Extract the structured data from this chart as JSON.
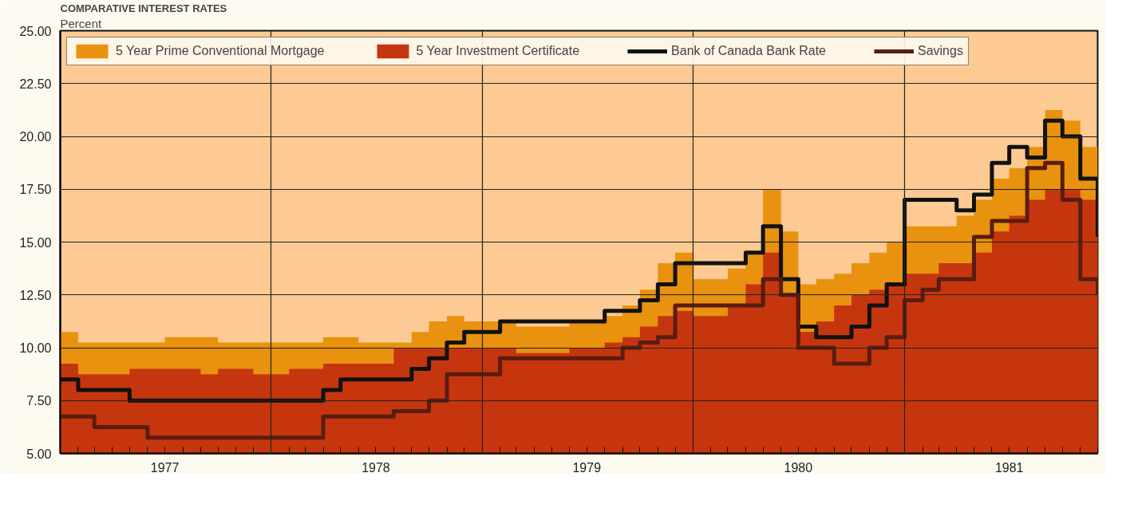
{
  "chart_data": {
    "type": "area",
    "title": "COMPARATIVE INTEREST RATES",
    "ylabel": "Percent",
    "x": [
      "1977-01",
      "1977-02",
      "1977-03",
      "1977-04",
      "1977-05",
      "1977-06",
      "1977-07",
      "1977-08",
      "1977-09",
      "1977-10",
      "1977-11",
      "1977-12",
      "1978-01",
      "1978-02",
      "1978-03",
      "1978-04",
      "1978-05",
      "1978-06",
      "1978-07",
      "1978-08",
      "1978-09",
      "1978-10",
      "1978-11",
      "1978-12",
      "1979-01",
      "1979-02",
      "1979-03",
      "1979-04",
      "1979-05",
      "1979-06",
      "1979-07",
      "1979-08",
      "1979-09",
      "1979-10",
      "1979-11",
      "1979-12",
      "1980-01",
      "1980-02",
      "1980-03",
      "1980-04",
      "1980-05",
      "1980-06",
      "1980-07",
      "1980-08",
      "1980-09",
      "1980-10",
      "1980-11",
      "1980-12",
      "1981-01",
      "1981-02",
      "1981-03",
      "1981-04",
      "1981-05",
      "1981-06",
      "1981-07",
      "1981-08",
      "1981-09",
      "1981-10",
      "1981-11",
      "1981-12"
    ],
    "series": [
      {
        "name": "5 Year Prime Conventional Mortgage",
        "color": "#e8920f",
        "values": [
          10.75,
          10.25,
          10.25,
          10.25,
          10.25,
          10.25,
          10.5,
          10.5,
          10.5,
          10.25,
          10.25,
          10.25,
          10.25,
          10.25,
          10.25,
          10.5,
          10.5,
          10.25,
          10.25,
          10.25,
          10.75,
          11.25,
          11.5,
          11.25,
          11.25,
          11.25,
          11.0,
          11.0,
          11.0,
          11.25,
          11.25,
          11.5,
          12.0,
          12.75,
          14.0,
          14.5,
          13.25,
          13.25,
          13.75,
          14.5,
          17.5,
          15.5,
          13.0,
          13.25,
          13.5,
          14.0,
          14.5,
          15.0,
          15.75,
          15.75,
          15.75,
          16.25,
          17.0,
          18.0,
          18.5,
          19.5,
          21.25,
          20.75,
          19.5,
          18.5
        ]
      },
      {
        "name": "5 Year Investment Certificate",
        "color": "#c5360e",
        "values": [
          9.25,
          8.75,
          8.75,
          8.75,
          9.0,
          9.0,
          9.0,
          9.0,
          8.75,
          9.0,
          9.0,
          8.75,
          8.75,
          9.0,
          9.0,
          9.25,
          9.25,
          9.25,
          9.25,
          10.0,
          10.0,
          10.0,
          10.0,
          10.0,
          10.0,
          10.0,
          9.75,
          9.75,
          9.75,
          10.0,
          10.0,
          10.25,
          10.5,
          11.0,
          11.5,
          11.75,
          11.5,
          11.5,
          12.0,
          13.0,
          14.5,
          12.5,
          10.75,
          11.25,
          12.0,
          12.5,
          12.75,
          13.0,
          13.5,
          13.5,
          14.0,
          14.0,
          14.5,
          15.5,
          16.25,
          17.0,
          17.5,
          17.5,
          17.0,
          16.0
        ]
      },
      {
        "name": "Bank of Canada Bank Rate",
        "type": "step",
        "color": "#111111",
        "values": [
          8.5,
          8.0,
          8.0,
          8.0,
          7.5,
          7.5,
          7.5,
          7.5,
          7.5,
          7.5,
          7.5,
          7.5,
          7.5,
          7.5,
          7.5,
          8.0,
          8.5,
          8.5,
          8.5,
          8.5,
          9.0,
          9.5,
          10.25,
          10.75,
          10.75,
          11.25,
          11.25,
          11.25,
          11.25,
          11.25,
          11.25,
          11.75,
          11.75,
          12.25,
          13.0,
          14.0,
          14.0,
          14.0,
          14.0,
          14.5,
          15.75,
          13.25,
          11.0,
          10.5,
          10.5,
          11.0,
          12.0,
          13.0,
          17.0,
          17.0,
          17.0,
          16.5,
          17.25,
          18.75,
          19.5,
          19.0,
          20.75,
          20.0,
          18.0,
          15.25
        ]
      },
      {
        "name": "Savings",
        "type": "step",
        "color": "#5a1c10",
        "values": [
          6.75,
          6.75,
          6.25,
          6.25,
          6.25,
          5.75,
          5.75,
          5.75,
          5.75,
          5.75,
          5.75,
          5.75,
          5.75,
          5.75,
          5.75,
          6.75,
          6.75,
          6.75,
          6.75,
          7.0,
          7.0,
          7.5,
          8.75,
          8.75,
          8.75,
          9.5,
          9.5,
          9.5,
          9.5,
          9.5,
          9.5,
          9.5,
          10.0,
          10.25,
          10.5,
          12.0,
          12.0,
          12.0,
          12.0,
          12.0,
          13.25,
          12.5,
          10.0,
          10.0,
          9.25,
          9.25,
          10.0,
          10.5,
          12.25,
          12.75,
          13.25,
          13.25,
          15.25,
          16.0,
          16.0,
          18.5,
          18.75,
          17.0,
          13.25,
          12.5
        ]
      }
    ],
    "xlim": [
      "1977-01",
      "1981-12"
    ],
    "xticks": [
      {
        "value": "1977-01",
        "label": null
      },
      {
        "value": "1977-07",
        "label": "1977"
      },
      {
        "value": "1978-01",
        "label": null
      },
      {
        "value": "1978-07",
        "label": "1978"
      },
      {
        "value": "1979-01",
        "label": null
      },
      {
        "value": "1979-07",
        "label": "1979"
      },
      {
        "value": "1980-01",
        "label": null
      },
      {
        "value": "1980-07",
        "label": "1980"
      },
      {
        "value": "1981-01",
        "label": null
      },
      {
        "value": "1981-07",
        "label": "1981"
      }
    ],
    "ylim": [
      5,
      25
    ],
    "yticks": [
      {
        "value": 5,
        "label": "5.00"
      },
      {
        "value": 7.5,
        "label": "7.50"
      },
      {
        "value": 10,
        "label": "10.00"
      },
      {
        "value": 12.5,
        "label": "12.50"
      },
      {
        "value": 15,
        "label": "15.00"
      },
      {
        "value": 17.5,
        "label": "17.50"
      },
      {
        "value": 20,
        "label": "20.00"
      },
      {
        "value": 22.5,
        "label": "22.50"
      },
      {
        "value": 25,
        "label": "25.00"
      }
    ],
    "grid": true,
    "legend": "top left"
  }
}
